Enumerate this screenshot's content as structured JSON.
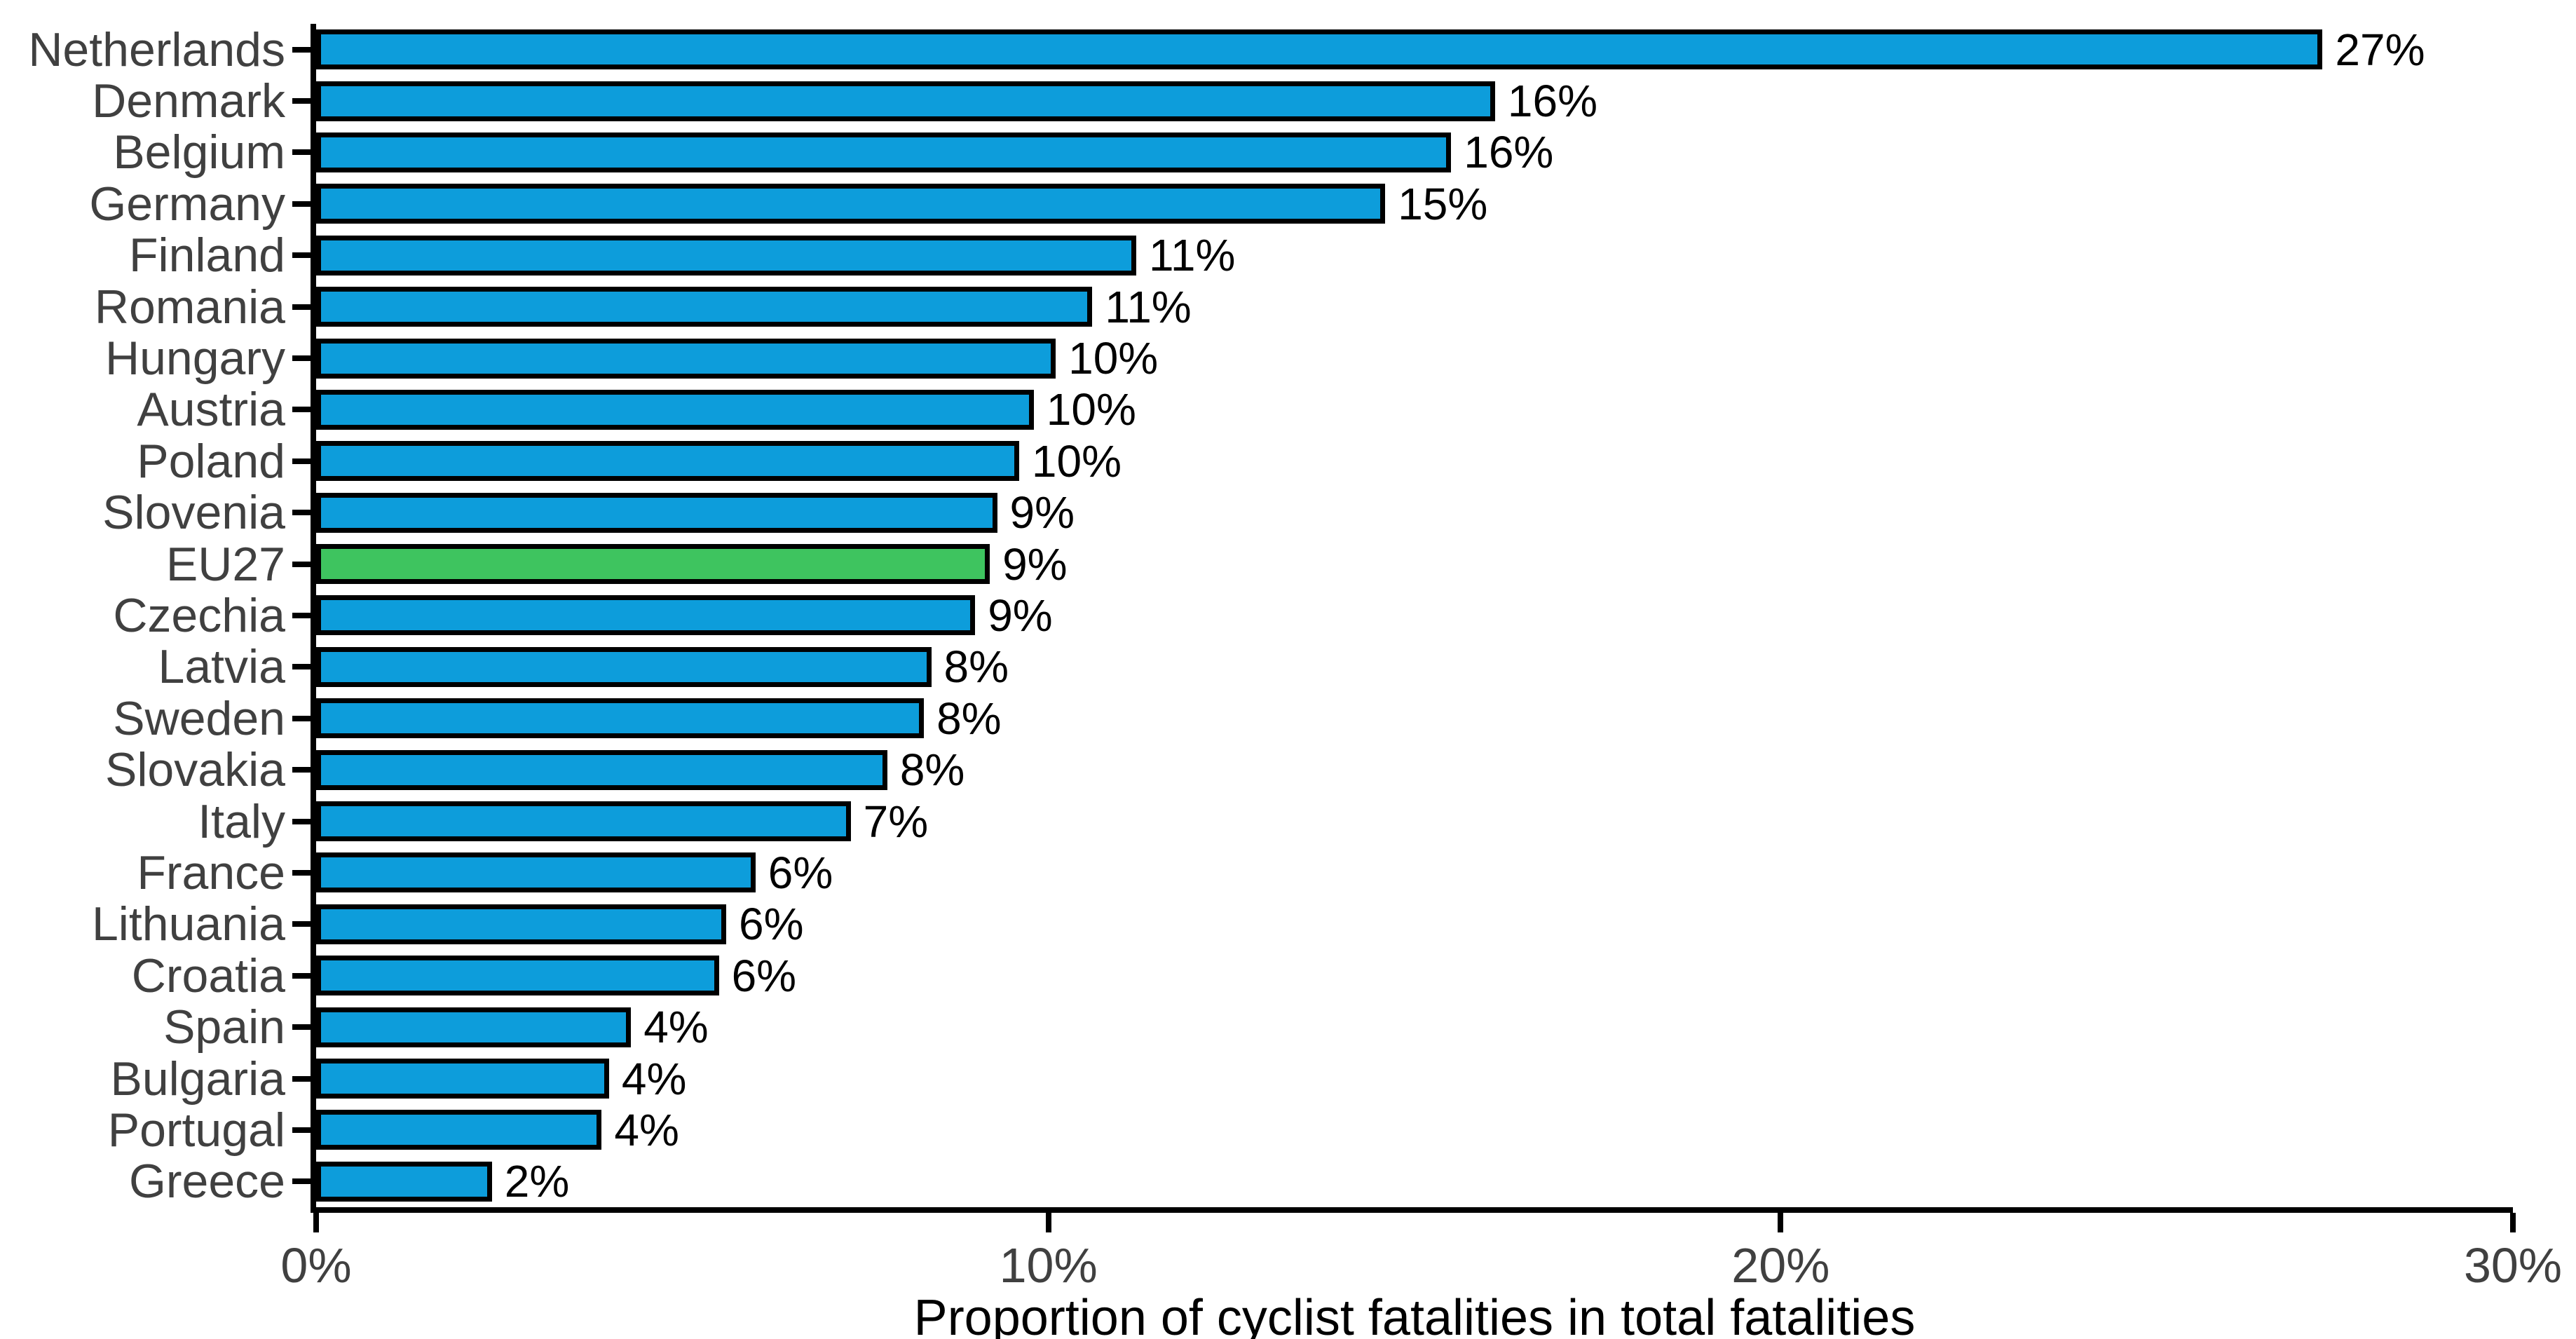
{
  "chart_data": {
    "type": "bar",
    "orientation": "horizontal",
    "title": "",
    "xlabel": "Proportion of cyclist fatalities in total fatalities",
    "ylabel": "",
    "xlim": [
      0,
      30
    ],
    "grid": false,
    "legend": false,
    "x_ticks": [
      {
        "value": 0,
        "label": "0%"
      },
      {
        "value": 10,
        "label": "10%"
      },
      {
        "value": 20,
        "label": "20%"
      },
      {
        "value": 30,
        "label": "30%"
      }
    ],
    "highlight_category": "EU27",
    "categories": [
      "Netherlands",
      "Denmark",
      "Belgium",
      "Germany",
      "Finland",
      "Romania",
      "Hungary",
      "Austria",
      "Poland",
      "Slovenia",
      "EU27",
      "Czechia",
      "Latvia",
      "Sweden",
      "Slovakia",
      "Italy",
      "France",
      "Lithuania",
      "Croatia",
      "Spain",
      "Bulgaria",
      "Portugal",
      "Greece"
    ],
    "values": [
      27.4,
      16.1,
      15.5,
      14.6,
      11.2,
      10.6,
      10.1,
      9.8,
      9.6,
      9.3,
      9.2,
      9.0,
      8.4,
      8.3,
      7.8,
      7.3,
      6.0,
      5.6,
      5.5,
      4.3,
      4.0,
      3.9,
      2.4
    ],
    "bar_labels": [
      "27%",
      "16%",
      "16%",
      "15%",
      "11%",
      "11%",
      "10%",
      "10%",
      "10%",
      "9%",
      "9%",
      "9%",
      "8%",
      "8%",
      "8%",
      "7%",
      "6%",
      "6%",
      "6%",
      "4%",
      "4%",
      "4%",
      "2%"
    ],
    "colors": {
      "bar": "#0d9ddb",
      "highlight": "#3ec45f",
      "bar_border": "#000000",
      "axis": "#000000",
      "category_label": "#404040",
      "tick_label": "#404040",
      "value_label": "#000000",
      "axis_title": "#000000",
      "background": "#ffffff"
    }
  }
}
